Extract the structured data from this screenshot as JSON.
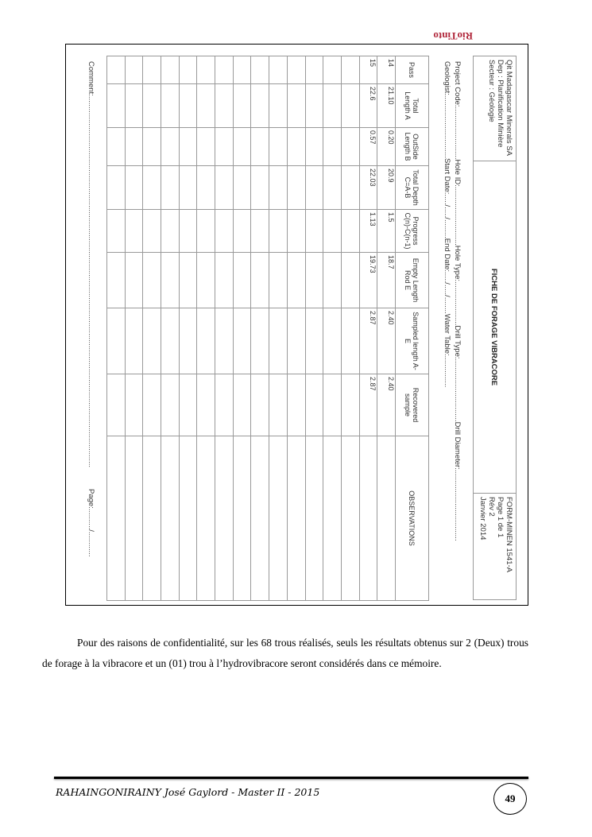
{
  "form": {
    "logo": "RioTinto",
    "company": [
      "Qit Madagascar Minerals SA",
      "Dep : Planification Minière",
      "Secteur : Géologie"
    ],
    "title": "FICHE DE FORAGE VIBRACORE",
    "form_info": [
      "FORM-MINEN 1541-A",
      "Page 1 de 1",
      "Rév 2",
      "Janvier 2014"
    ],
    "fields_line1": "Project Code:.........................Hole ID:............................Hole Type:.....................Drill Type:..............................Drill Diameter:..................................",
    "fields_line2": "Geologist:..............................Start Date:...../...../.........End Date:...../...../........Water Table:...............",
    "columns": [
      "Pass",
      "Total Length A",
      "OutSide Length B",
      "Total Depth C=A-B",
      "Progress C(n)-C(n-1)",
      "Empty Length Rod E",
      "Sampled length A-E",
      "Recovered sample",
      "OBSERVATIONS"
    ],
    "rows": [
      [
        "14",
        "21.10",
        "0.20",
        "20.9",
        "1.5",
        "18.7",
        "2.40",
        "2.40",
        ""
      ],
      [
        "15",
        "22.6",
        "0.57",
        "22.03",
        "1.13",
        "19.73",
        "2.87",
        "2.87",
        ""
      ]
    ],
    "comment": "Comment:.................................................................................................................................................................................",
    "page": "Page:........../............"
  },
  "paragraph": "Pour des raisons de confidentialité, sur les 68 trous réalisés, seuls les résultats obtenus sur 2 (Deux) trous de forage à la vibracore et un (01) trou à l’hydrovibracore seront considérés dans ce mémoire.",
  "footer": {
    "author": "RAHAINGONIRAINY José Gaylord - Master II - 2015",
    "page_number": "49"
  }
}
